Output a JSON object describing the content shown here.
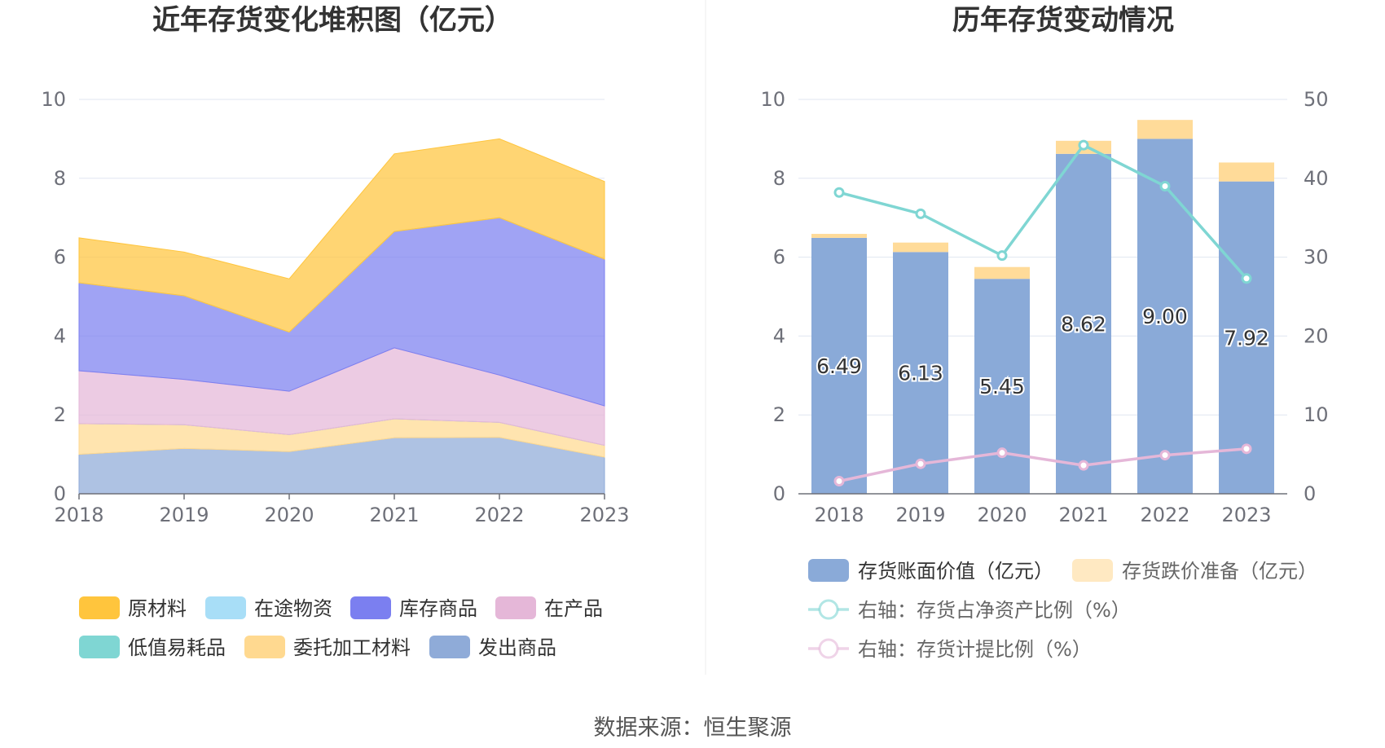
{
  "footer": {
    "source": "数据来源：恒生聚源"
  },
  "colors": {
    "raw_material": "#ffc53d",
    "in_transit": "#a8def7",
    "inventory_goods": "#7b7ff0",
    "wip": "#e5b7d8",
    "low_value": "#7fd6d3",
    "outsourced": "#ffd990",
    "shipped": "#8fabd8",
    "book_value_bar": "#8aaad8",
    "impairment_bar": "#ffdb99",
    "ratio_line": "#7fd6d3",
    "provision_line": "#e5b7d8"
  },
  "chart_data": [
    {
      "type": "area",
      "stacked": true,
      "title": "近年存货变化堆积图（亿元）",
      "categories": [
        "2018",
        "2019",
        "2020",
        "2021",
        "2022",
        "2023"
      ],
      "ylim": [
        0,
        10
      ],
      "yticks": [
        "0",
        "2",
        "4",
        "6",
        "8",
        "10"
      ],
      "series": [
        {
          "key": "shipped",
          "name": "发出商品",
          "color_key": "shipped",
          "values": [
            1.0,
            1.15,
            1.07,
            1.42,
            1.43,
            0.93
          ]
        },
        {
          "key": "outsourced",
          "name": "委托加工材料",
          "color_key": "outsourced",
          "values": [
            0.78,
            0.6,
            0.43,
            0.48,
            0.38,
            0.3
          ]
        },
        {
          "key": "low_value",
          "name": "低值易耗品",
          "color_key": "low_value",
          "values": [
            0.0,
            0.0,
            0.0,
            0.0,
            0.0,
            0.0
          ]
        },
        {
          "key": "wip",
          "name": "在产品",
          "color_key": "wip",
          "values": [
            1.34,
            1.15,
            1.1,
            1.8,
            1.2,
            1.0
          ]
        },
        {
          "key": "inventory_goods",
          "name": "库存商品",
          "color_key": "inventory_goods",
          "values": [
            2.23,
            2.12,
            1.5,
            2.95,
            3.99,
            3.72
          ]
        },
        {
          "key": "in_transit",
          "name": "在途物资",
          "color_key": "in_transit",
          "values": [
            0.0,
            0.0,
            0.0,
            0.0,
            0.0,
            0.0
          ]
        },
        {
          "key": "raw_material",
          "name": "原材料",
          "color_key": "raw_material",
          "values": [
            1.14,
            1.11,
            1.35,
            1.97,
            2.0,
            1.97
          ]
        }
      ],
      "legend": [
        {
          "label": "原材料",
          "color_key": "raw_material"
        },
        {
          "label": "在途物资",
          "color_key": "in_transit"
        },
        {
          "label": "库存商品",
          "color_key": "inventory_goods"
        },
        {
          "label": "在产品",
          "color_key": "wip"
        },
        {
          "label": "低值易耗品",
          "color_key": "low_value"
        },
        {
          "label": "委托加工材料",
          "color_key": "outsourced"
        },
        {
          "label": "发出商品",
          "color_key": "shipped"
        }
      ]
    },
    {
      "type": "bar",
      "stacked": true,
      "title": "历年存货变动情况",
      "categories": [
        "2018",
        "2019",
        "2020",
        "2021",
        "2022",
        "2023"
      ],
      "ylim": [
        0,
        10
      ],
      "yticks": [
        "0",
        "2",
        "4",
        "6",
        "8",
        "10"
      ],
      "y2lim": [
        0,
        50
      ],
      "y2ticks": [
        "0",
        "10",
        "20",
        "30",
        "40",
        "50"
      ],
      "bars": [
        {
          "key": "book_value",
          "name": "存货账面价值（亿元）",
          "color_key": "book_value_bar",
          "values": [
            6.49,
            6.13,
            5.45,
            8.62,
            9.0,
            7.92
          ],
          "labels": [
            "6.49",
            "6.13",
            "5.45",
            "8.62",
            "9.00",
            "7.92"
          ]
        },
        {
          "key": "impairment",
          "name": "存货跌价准备（亿元）",
          "color_key": "impairment_bar",
          "values": [
            0.1,
            0.24,
            0.3,
            0.33,
            0.48,
            0.48
          ]
        }
      ],
      "lines": [
        {
          "key": "ratio",
          "name": "右轴：存货占净资产比例（%）",
          "axis": "right",
          "color_key": "ratio_line",
          "values": [
            38.2,
            35.5,
            30.2,
            44.2,
            39.0,
            27.3
          ]
        },
        {
          "key": "provision",
          "name": "右轴：存货计提比例（%）",
          "axis": "right",
          "color_key": "provision_line",
          "values": [
            1.6,
            3.8,
            5.2,
            3.6,
            4.9,
            5.7
          ]
        }
      ],
      "legend": [
        {
          "label": "存货账面价值（亿元）",
          "color_key": "book_value_bar",
          "kind": "bar"
        },
        {
          "label": "存货跌价准备（亿元）",
          "color_key": "impairment_bar",
          "kind": "bar"
        },
        {
          "label": "右轴：存货占净资产比例（%）",
          "color_key": "ratio_line",
          "kind": "line"
        },
        {
          "label": "右轴：存货计提比例（%）",
          "color_key": "provision_line",
          "kind": "line"
        }
      ]
    }
  ]
}
